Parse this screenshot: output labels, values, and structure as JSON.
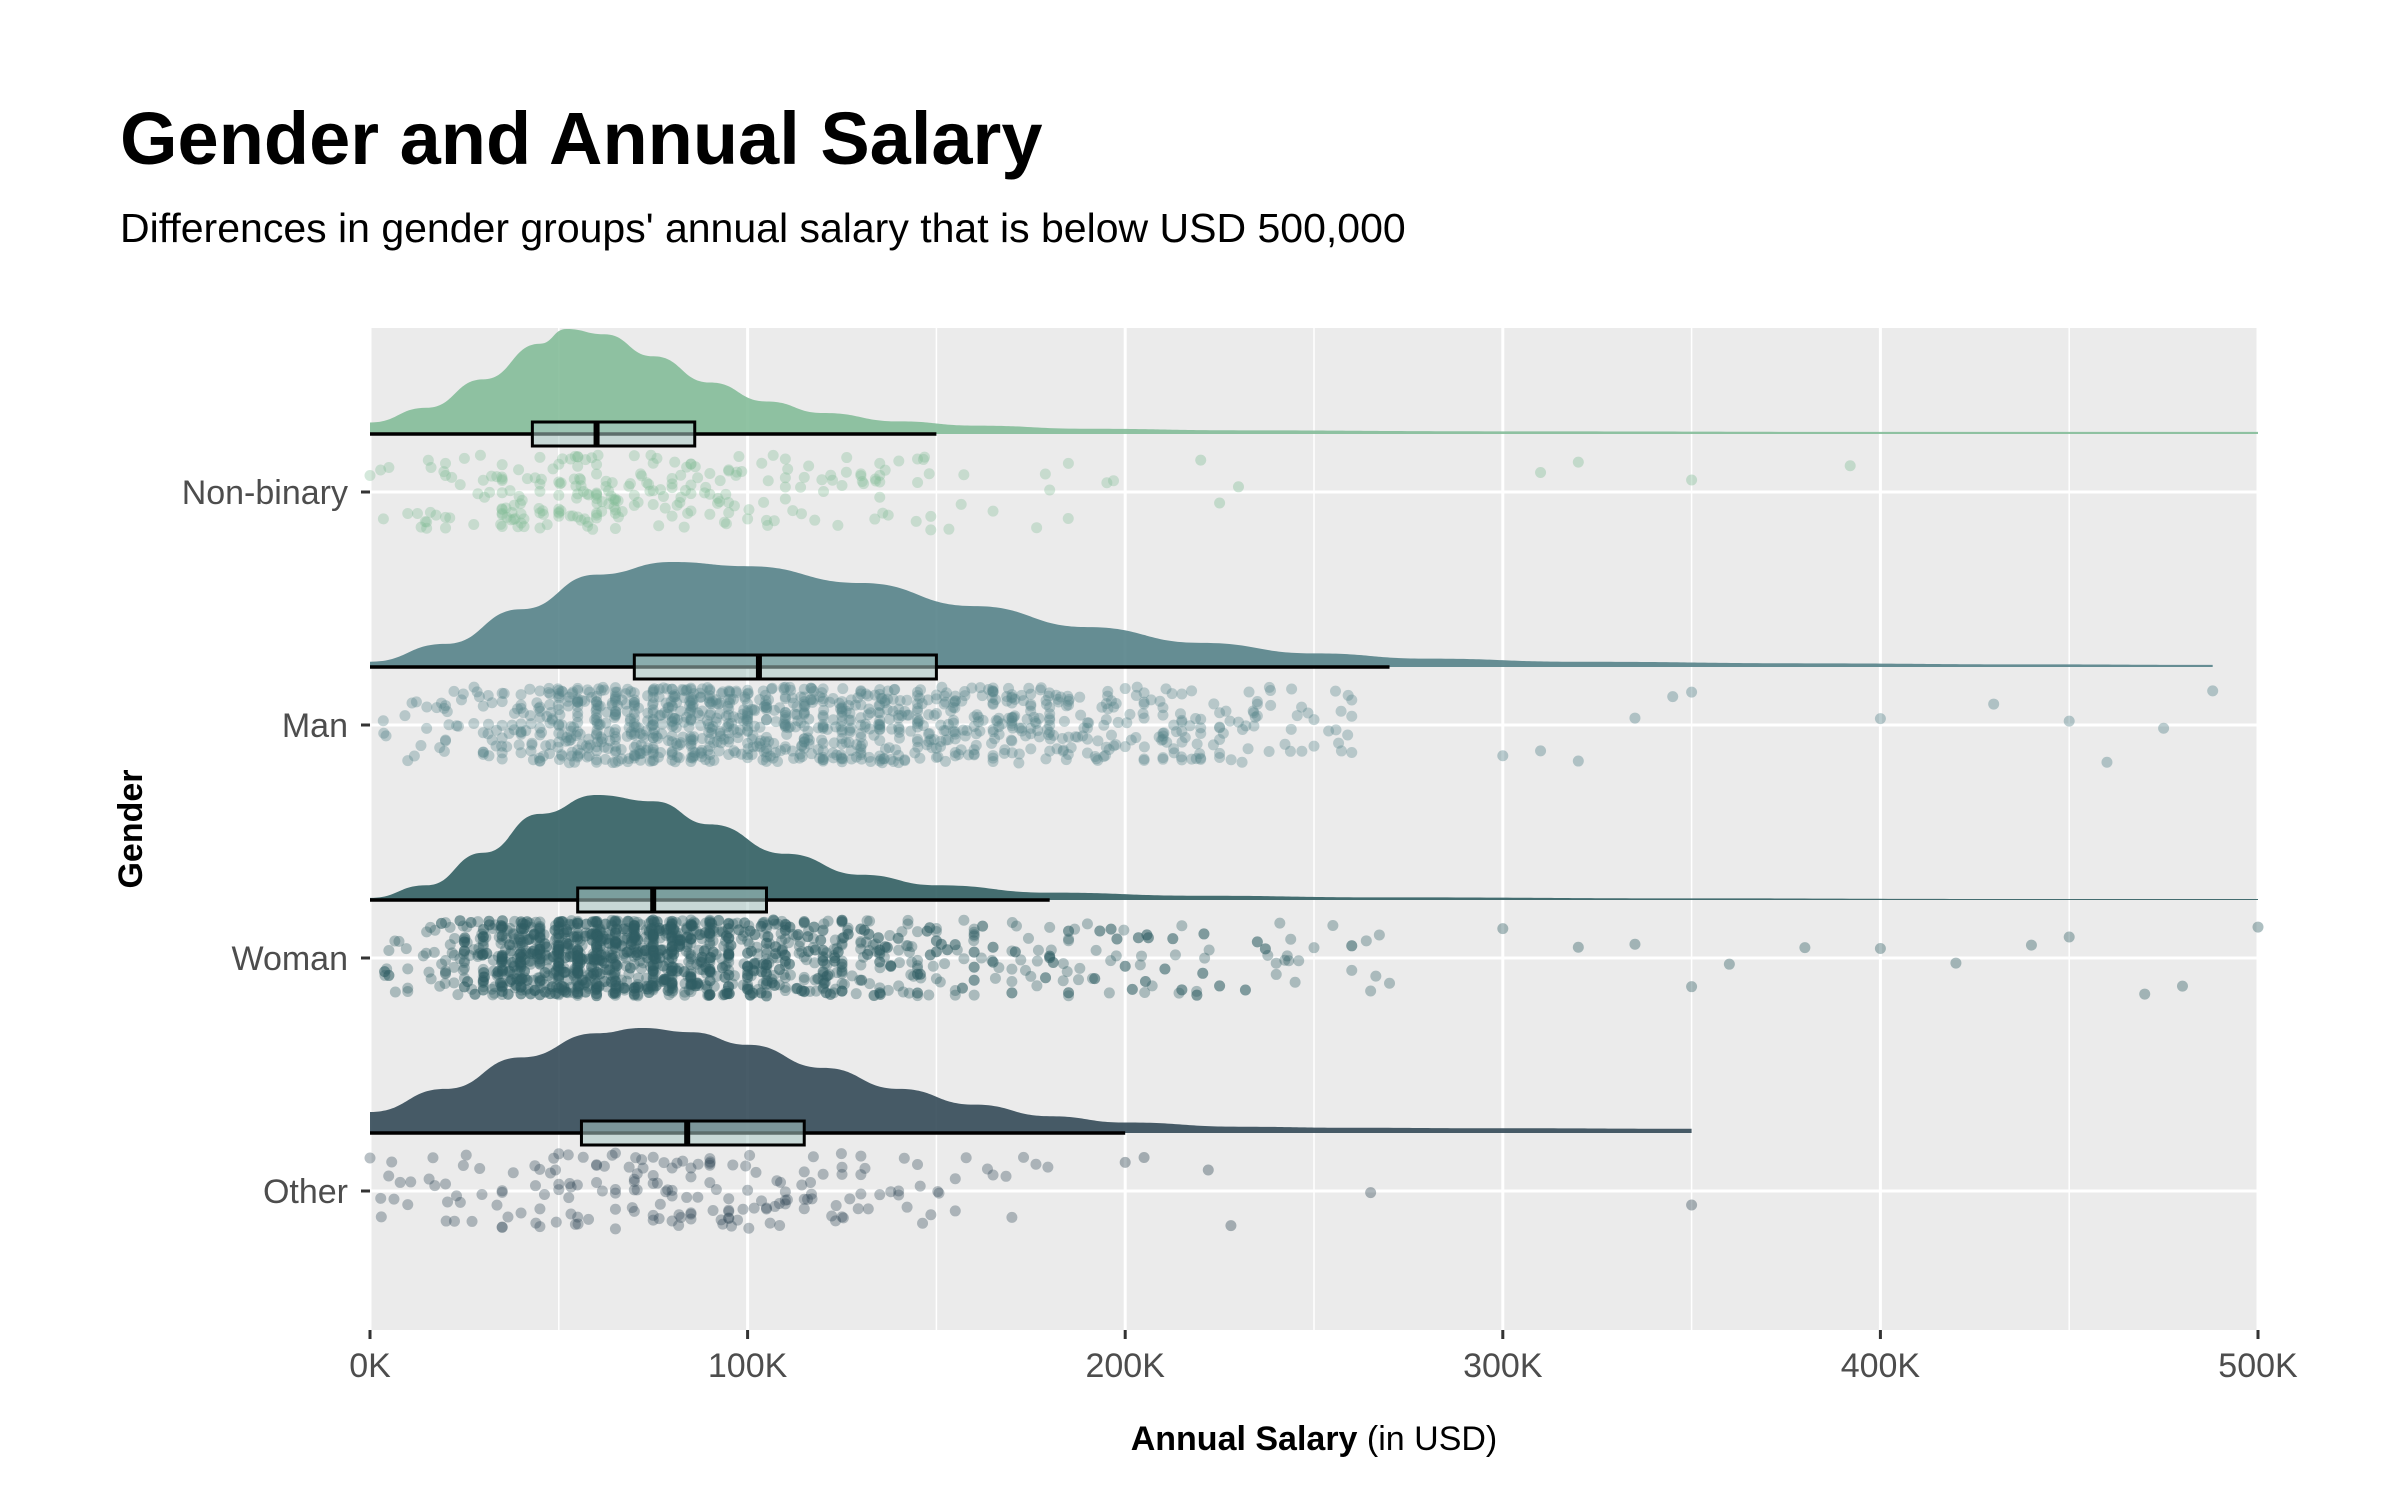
{
  "chart_data": {
    "type": "raincloud",
    "title": "Gender and Annual Salary",
    "subtitle": "Differences in gender groups' annual salary that is below USD 500,000",
    "xlabel_bold": "Annual Salary",
    "xlabel_rest": " (in USD)",
    "ylabel": "Gender",
    "xlim": [
      0,
      500000
    ],
    "x_ticks": [
      0,
      100000,
      200000,
      300000,
      400000,
      500000
    ],
    "x_tick_labels": [
      "0K",
      "100K",
      "200K",
      "300K",
      "400K",
      "500K"
    ],
    "grid": true,
    "legend": "none",
    "colors": {
      "panel": "#ebebeb",
      "grid": "#ffffff",
      "box_fill": "#a9c8c4"
    },
    "categories": [
      "Non-binary",
      "Man",
      "Woman",
      "Other"
    ],
    "series": [
      {
        "name": "Non-binary",
        "color": "#84bd99",
        "box": {
          "whisker_low": 0,
          "q1": 43000,
          "median": 60000,
          "q3": 86000,
          "whisker_high": 150000
        },
        "density": {
          "x": [
            0,
            15000,
            30000,
            45000,
            52000,
            62000,
            75000,
            90000,
            105000,
            120000,
            140000,
            160000,
            190000,
            230000,
            300000,
            400000,
            500000
          ],
          "y": [
            0.11,
            0.25,
            0.52,
            0.86,
            1.0,
            0.95,
            0.74,
            0.49,
            0.31,
            0.2,
            0.12,
            0.08,
            0.05,
            0.035,
            0.025,
            0.02,
            0.02
          ]
        },
        "point_range": [
          0,
          200000
        ],
        "point_count": 260,
        "outliers": [
          220000,
          225000,
          230000,
          310000,
          320000,
          350000,
          392000
        ]
      },
      {
        "name": "Man",
        "color": "#56838a",
        "box": {
          "whisker_low": 0,
          "q1": 70000,
          "median": 103000,
          "q3": 150000,
          "whisker_high": 270000
        },
        "density": {
          "x": [
            0,
            20000,
            40000,
            60000,
            80000,
            100000,
            130000,
            160000,
            190000,
            220000,
            250000,
            280000,
            320000,
            380000,
            440000,
            488000
          ],
          "y": [
            0.05,
            0.22,
            0.55,
            0.88,
            1.0,
            0.96,
            0.8,
            0.58,
            0.38,
            0.23,
            0.13,
            0.08,
            0.05,
            0.035,
            0.025,
            0.02
          ]
        },
        "point_range": [
          0,
          260000
        ],
        "point_count": 1100,
        "outliers": [
          300000,
          310000,
          320000,
          335000,
          345000,
          350000,
          400000,
          430000,
          450000,
          460000,
          475000,
          488000
        ]
      },
      {
        "name": "Woman",
        "color": "#325f63",
        "box": {
          "whisker_low": 0,
          "q1": 55000,
          "median": 75000,
          "q3": 105000,
          "whisker_high": 180000
        },
        "density": {
          "x": [
            0,
            15000,
            30000,
            45000,
            60000,
            75000,
            90000,
            110000,
            130000,
            150000,
            180000,
            220000,
            270000,
            350000,
            430000,
            500000
          ],
          "y": [
            0.02,
            0.14,
            0.45,
            0.82,
            1.0,
            0.94,
            0.72,
            0.44,
            0.24,
            0.14,
            0.07,
            0.04,
            0.025,
            0.015,
            0.01,
            0.01
          ]
        },
        "point_range": [
          0,
          270000
        ],
        "point_count": 1700,
        "outliers": [
          300000,
          320000,
          335000,
          350000,
          360000,
          380000,
          400000,
          420000,
          440000,
          450000,
          470000,
          480000,
          500000
        ]
      },
      {
        "name": "Other",
        "color": "#344a58",
        "box": {
          "whisker_low": 0,
          "q1": 56000,
          "median": 84000,
          "q3": 115000,
          "whisker_high": 200000
        },
        "density": {
          "x": [
            0,
            20000,
            40000,
            60000,
            72000,
            85000,
            100000,
            120000,
            140000,
            160000,
            180000,
            200000,
            230000,
            260000,
            300000,
            350000
          ],
          "y": [
            0.2,
            0.42,
            0.72,
            0.95,
            1.0,
            0.96,
            0.84,
            0.62,
            0.42,
            0.27,
            0.16,
            0.1,
            0.06,
            0.05,
            0.045,
            0.04
          ]
        },
        "point_range": [
          0,
          180000
        ],
        "point_count": 190,
        "outliers": [
          200000,
          205000,
          222000,
          228000,
          265000,
          350000
        ]
      }
    ]
  }
}
